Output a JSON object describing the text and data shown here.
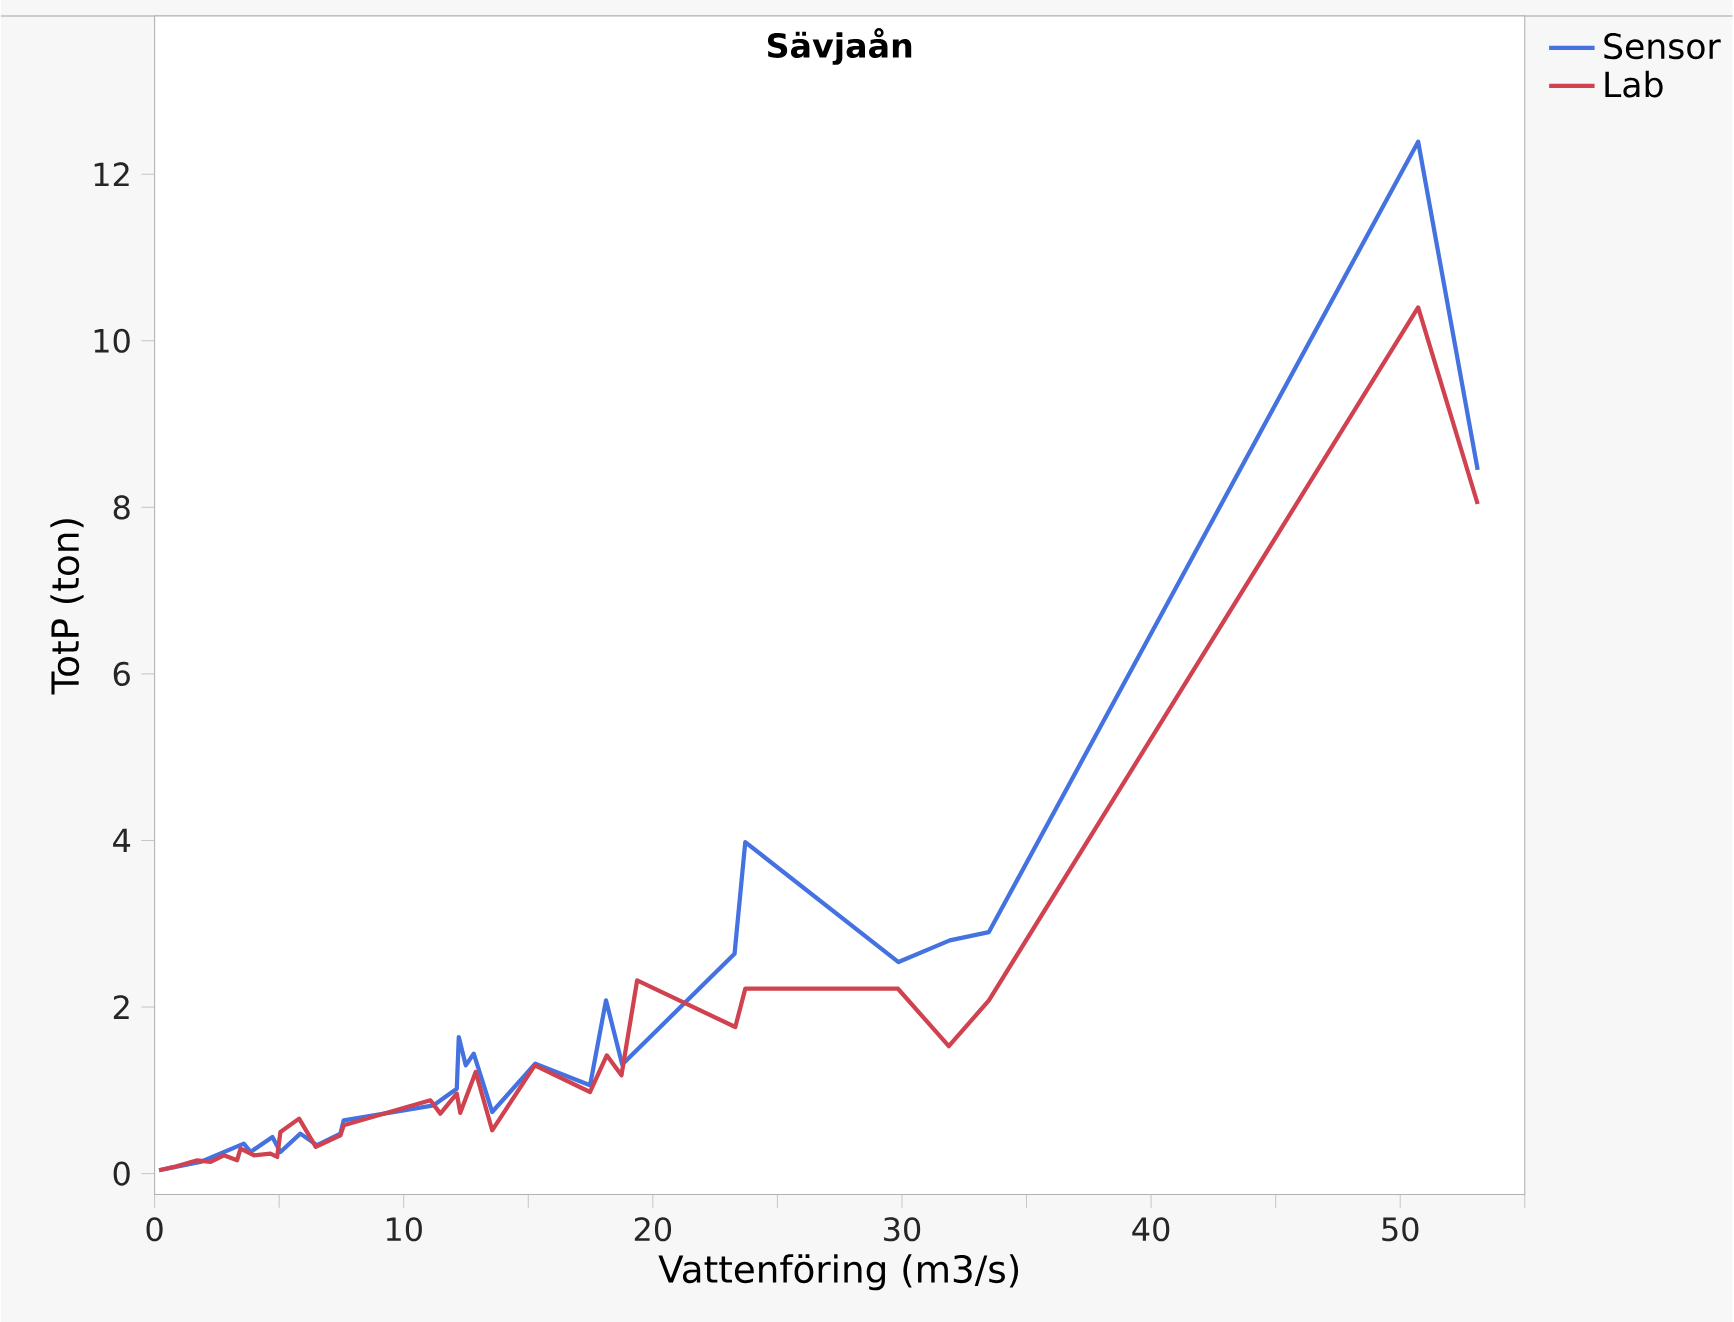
{
  "chart_data": {
    "type": "line",
    "title": "Sävjaån",
    "xlabel": "Vattenföring (m3/s)",
    "ylabel": "TotP (ton)",
    "xlim": [
      0,
      55
    ],
    "ylim": [
      -0.25,
      13.9
    ],
    "xticks": [
      0,
      {
        "value": 5,
        "label": null
      },
      10,
      {
        "value": 15,
        "label": null
      },
      20,
      {
        "value": 25,
        "label": null
      },
      30,
      {
        "value": 35,
        "label": null
      },
      40,
      {
        "value": 45,
        "label": null
      },
      50,
      {
        "value": 55,
        "label": null
      }
    ],
    "yticks": [
      0,
      2,
      4,
      6,
      8,
      10,
      12
    ],
    "legend": "top right",
    "series": [
      {
        "name": "Sensor",
        "color": "#4472e0",
        "x": [
          0.18,
          1.84,
          3.58,
          3.85,
          4.73,
          5.05,
          5.85,
          6.52,
          7.46,
          7.59,
          11.2,
          12.13,
          12.21,
          12.49,
          12.81,
          13.55,
          15.28,
          17.48,
          18.12,
          18.77,
          23.28,
          23.71,
          29.86,
          31.92,
          33.49,
          50.72,
          53.11
        ],
        "values": [
          0.04,
          0.14,
          0.36,
          0.26,
          0.44,
          0.26,
          0.48,
          0.34,
          0.48,
          0.64,
          0.82,
          1.02,
          1.64,
          1.3,
          1.44,
          0.74,
          1.32,
          1.06,
          2.08,
          1.31,
          2.64,
          3.98,
          2.54,
          2.8,
          2.9,
          12.39,
          8.45
        ]
      },
      {
        "name": "Lab",
        "color": "#d0424f",
        "x": [
          0.18,
          0.78,
          1.71,
          2.25,
          2.78,
          3.31,
          3.45,
          3.99,
          4.65,
          4.92,
          5.05,
          5.8,
          6.47,
          7.46,
          7.59,
          11.07,
          11.47,
          12.13,
          12.27,
          12.89,
          13.55,
          15.26,
          17.48,
          18.15,
          18.74,
          19.37,
          23.31,
          23.71,
          29.84,
          31.88,
          33.49,
          50.72,
          53.11
        ],
        "values": [
          0.04,
          0.08,
          0.16,
          0.14,
          0.22,
          0.16,
          0.3,
          0.22,
          0.24,
          0.2,
          0.5,
          0.66,
          0.32,
          0.46,
          0.58,
          0.88,
          0.72,
          0.96,
          0.73,
          1.22,
          0.52,
          1.3,
          0.98,
          1.42,
          1.18,
          2.32,
          1.76,
          2.22,
          2.22,
          1.53,
          2.08,
          10.4,
          8.04
        ]
      }
    ]
  }
}
